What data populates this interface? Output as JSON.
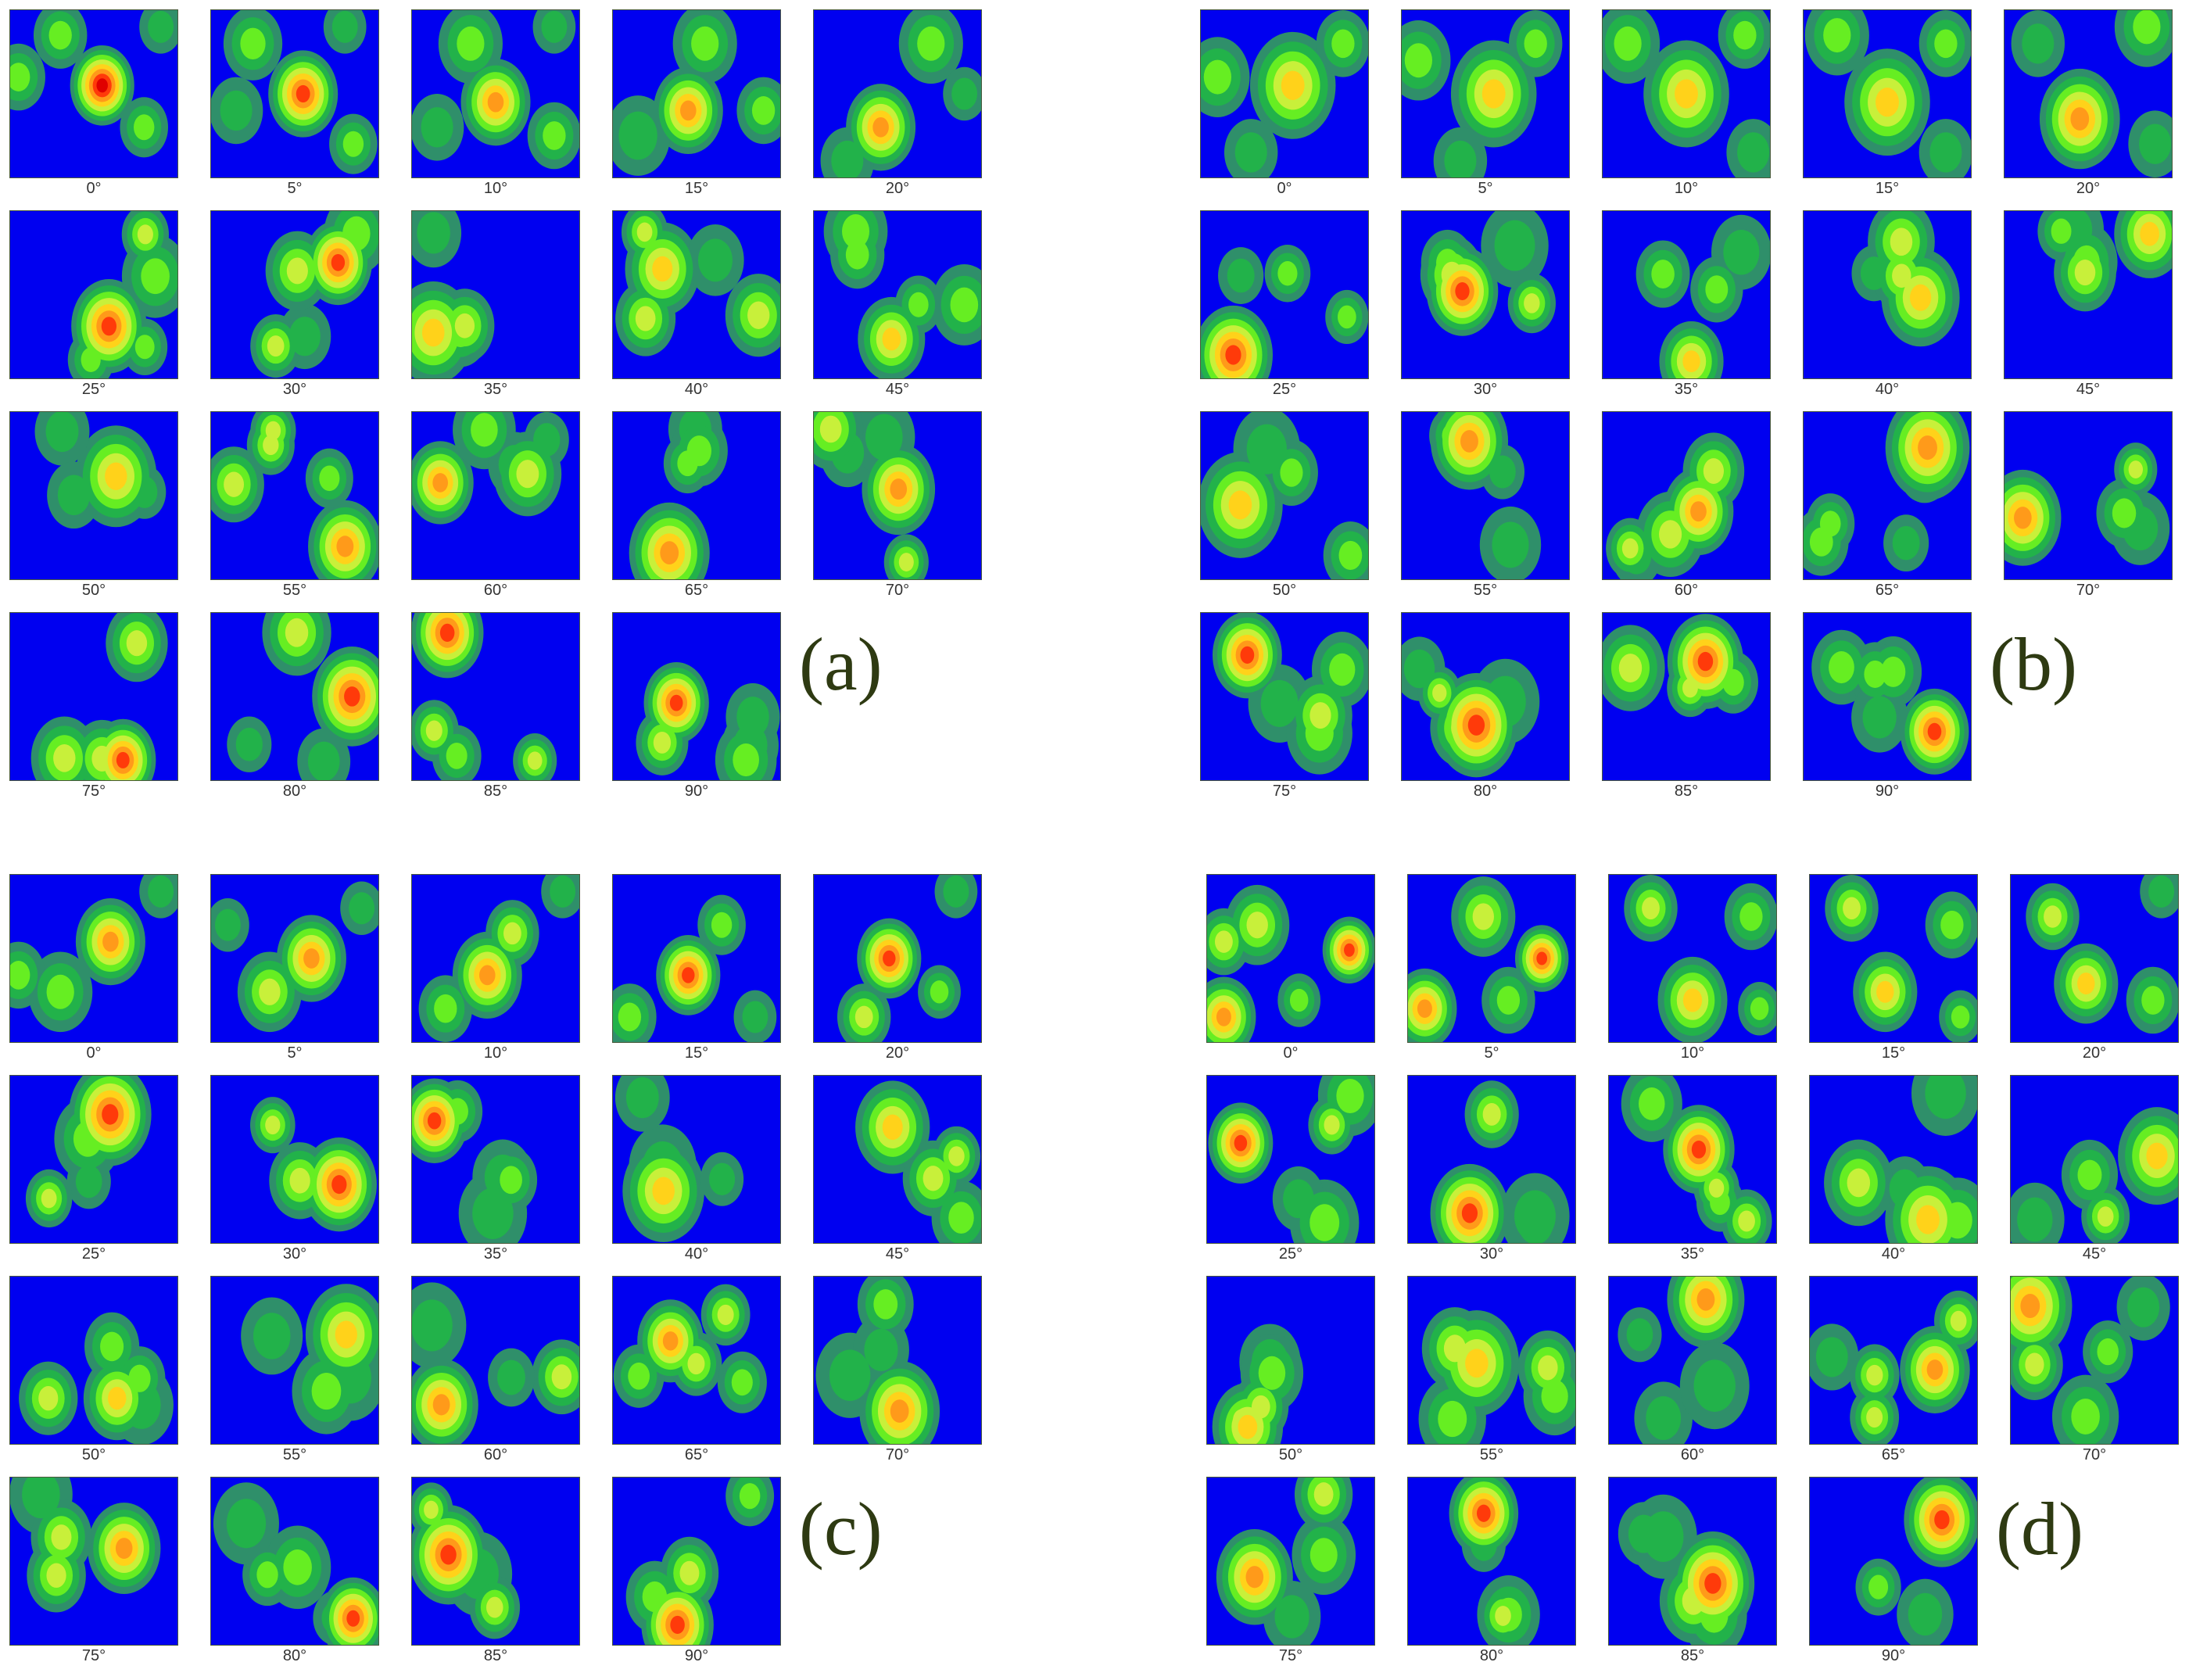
{
  "colors": {
    "background": "#0000f0",
    "levels": [
      "#2f8f6a",
      "#22b24a",
      "#66ee22",
      "#c8f03a",
      "#ffd21a",
      "#ff9a1a",
      "#ff3a0a",
      "#e00000"
    ],
    "label": "#2e3a12"
  },
  "panels": [
    {
      "label": "(a)",
      "tiles": [
        {
          "caption": "0°",
          "blobs": [
            [
              0.55,
              0.45,
              0.12,
              8
            ],
            [
              0.3,
              0.15,
              0.1,
              3
            ],
            [
              0.05,
              0.4,
              0.1,
              3
            ],
            [
              0.8,
              0.7,
              0.09,
              3
            ],
            [
              0.9,
              0.1,
              0.08,
              2
            ]
          ]
        },
        {
          "caption": "5°",
          "blobs": [
            [
              0.55,
              0.5,
              0.13,
              7
            ],
            [
              0.25,
              0.2,
              0.11,
              3
            ],
            [
              0.15,
              0.6,
              0.1,
              2
            ],
            [
              0.85,
              0.8,
              0.09,
              3
            ],
            [
              0.8,
              0.1,
              0.08,
              2
            ]
          ]
        },
        {
          "caption": "10°",
          "blobs": [
            [
              0.5,
              0.55,
              0.13,
              6
            ],
            [
              0.35,
              0.2,
              0.12,
              3
            ],
            [
              0.15,
              0.7,
              0.1,
              2
            ],
            [
              0.85,
              0.75,
              0.1,
              3
            ],
            [
              0.85,
              0.1,
              0.08,
              2
            ]
          ]
        },
        {
          "caption": "15°",
          "blobs": [
            [
              0.45,
              0.6,
              0.13,
              6
            ],
            [
              0.55,
              0.2,
              0.12,
              3
            ],
            [
              0.15,
              0.75,
              0.12,
              2
            ],
            [
              0.9,
              0.6,
              0.1,
              3
            ]
          ]
        },
        {
          "caption": "20°",
          "blobs": [
            [
              0.4,
              0.7,
              0.13,
              6
            ],
            [
              0.7,
              0.2,
              0.12,
              3
            ],
            [
              0.2,
              0.9,
              0.1,
              2
            ],
            [
              0.9,
              0.5,
              0.08,
              2
            ]
          ]
        }
      ]
    },
    {
      "label": "(b)",
      "tiles": [
        {
          "caption": "0°",
          "blobs": [
            [
              0.55,
              0.45,
              0.16,
              5
            ],
            [
              0.1,
              0.4,
              0.12,
              3
            ],
            [
              0.85,
              0.2,
              0.1,
              3
            ],
            [
              0.3,
              0.85,
              0.1,
              2
            ]
          ]
        },
        {
          "caption": "5°",
          "blobs": [
            [
              0.55,
              0.5,
              0.16,
              5
            ],
            [
              0.1,
              0.3,
              0.12,
              3
            ],
            [
              0.8,
              0.2,
              0.1,
              3
            ],
            [
              0.35,
              0.9,
              0.1,
              2
            ]
          ]
        },
        {
          "caption": "10°",
          "blobs": [
            [
              0.5,
              0.5,
              0.16,
              5
            ],
            [
              0.15,
              0.2,
              0.12,
              3
            ],
            [
              0.85,
              0.15,
              0.1,
              3
            ],
            [
              0.9,
              0.85,
              0.1,
              2
            ]
          ]
        },
        {
          "caption": "15°",
          "blobs": [
            [
              0.5,
              0.55,
              0.16,
              5
            ],
            [
              0.2,
              0.15,
              0.12,
              3
            ],
            [
              0.85,
              0.2,
              0.1,
              3
            ],
            [
              0.85,
              0.85,
              0.1,
              2
            ]
          ]
        },
        {
          "caption": "20°",
          "blobs": [
            [
              0.45,
              0.65,
              0.15,
              6
            ],
            [
              0.85,
              0.1,
              0.12,
              3
            ],
            [
              0.2,
              0.2,
              0.1,
              2
            ],
            [
              0.9,
              0.8,
              0.1,
              2
            ]
          ]
        }
      ]
    },
    {
      "label": "(c)",
      "tiles": [
        {
          "caption": "0°",
          "blobs": [
            [
              0.6,
              0.4,
              0.13,
              6
            ],
            [
              0.3,
              0.7,
              0.12,
              3
            ],
            [
              0.05,
              0.6,
              0.1,
              3
            ],
            [
              0.9,
              0.1,
              0.08,
              2
            ]
          ]
        },
        {
          "caption": "5°",
          "blobs": [
            [
              0.6,
              0.5,
              0.13,
              6
            ],
            [
              0.35,
              0.7,
              0.12,
              4
            ],
            [
              0.1,
              0.3,
              0.08,
              2
            ],
            [
              0.9,
              0.2,
              0.08,
              2
            ]
          ]
        },
        {
          "caption": "10°",
          "blobs": [
            [
              0.45,
              0.6,
              0.13,
              6
            ],
            [
              0.6,
              0.35,
              0.1,
              4
            ],
            [
              0.9,
              0.1,
              0.08,
              2
            ],
            [
              0.2,
              0.8,
              0.1,
              3
            ]
          ]
        },
        {
          "caption": "15°",
          "blobs": [
            [
              0.45,
              0.6,
              0.12,
              7
            ],
            [
              0.65,
              0.3,
              0.09,
              3
            ],
            [
              0.1,
              0.85,
              0.1,
              3
            ],
            [
              0.85,
              0.85,
              0.08,
              2
            ]
          ]
        },
        {
          "caption": "20°",
          "blobs": [
            [
              0.45,
              0.5,
              0.12,
              7
            ],
            [
              0.3,
              0.85,
              0.1,
              4
            ],
            [
              0.85,
              0.1,
              0.08,
              2
            ],
            [
              0.75,
              0.7,
              0.08,
              3
            ]
          ]
        }
      ]
    },
    {
      "label": "(d)",
      "tiles": [
        {
          "caption": "0°",
          "blobs": [
            [
              0.85,
              0.45,
              0.1,
              7
            ],
            [
              0.1,
              0.85,
              0.12,
              6
            ],
            [
              0.3,
              0.3,
              0.12,
              4
            ],
            [
              0.55,
              0.75,
              0.08,
              3
            ],
            [
              0.1,
              0.4,
              0.1,
              4
            ]
          ]
        },
        {
          "caption": "5°",
          "blobs": [
            [
              0.8,
              0.5,
              0.1,
              7
            ],
            [
              0.1,
              0.8,
              0.12,
              6
            ],
            [
              0.45,
              0.25,
              0.12,
              4
            ],
            [
              0.6,
              0.75,
              0.1,
              3
            ]
          ]
        },
        {
          "caption": "10°",
          "blobs": [
            [
              0.5,
              0.75,
              0.13,
              5
            ],
            [
              0.25,
              0.2,
              0.1,
              4
            ],
            [
              0.85,
              0.25,
              0.1,
              3
            ],
            [
              0.9,
              0.8,
              0.08,
              3
            ]
          ]
        },
        {
          "caption": "15°",
          "blobs": [
            [
              0.45,
              0.7,
              0.12,
              5
            ],
            [
              0.25,
              0.2,
              0.1,
              4
            ],
            [
              0.85,
              0.3,
              0.1,
              3
            ],
            [
              0.9,
              0.85,
              0.08,
              3
            ]
          ]
        },
        {
          "caption": "20°",
          "blobs": [
            [
              0.45,
              0.65,
              0.12,
              5
            ],
            [
              0.25,
              0.25,
              0.1,
              4
            ],
            [
              0.85,
              0.75,
              0.1,
              3
            ],
            [
              0.9,
              0.1,
              0.08,
              2
            ]
          ]
        }
      ]
    }
  ],
  "extra_captions": [
    "0°",
    "5°",
    "10°",
    "15°",
    "20°",
    "25°",
    "30°",
    "35°",
    "40°",
    "45°",
    "50°",
    "55°",
    "60°",
    "65°",
    "70°",
    "75°",
    "80°",
    "85°",
    "90°"
  ]
}
